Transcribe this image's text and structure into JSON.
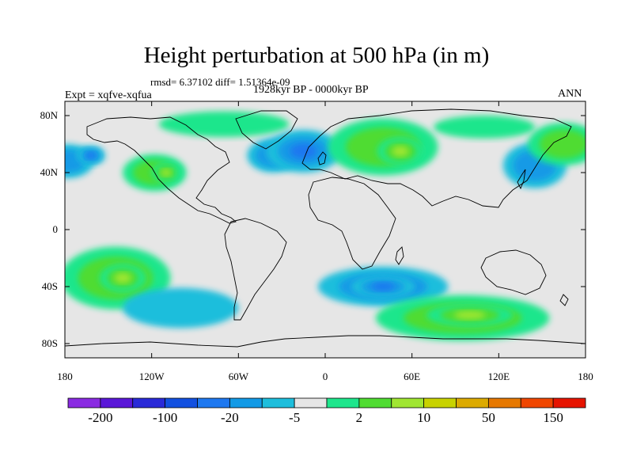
{
  "figure": {
    "title": "Height perturbation at 500 hPa (in m)",
    "stats": "rmsd= 6.37102 diff= 1.51364e-09",
    "experiment": "Expt = xqfve-xqfua",
    "period": "1928kyr BP - 0000kyr BP",
    "season": "ANN"
  },
  "axes": {
    "lat_labels": [
      {
        "text": "80N",
        "value": 80
      },
      {
        "text": "40N",
        "value": 40
      },
      {
        "text": "0",
        "value": 0
      },
      {
        "text": "40S",
        "value": -40
      },
      {
        "text": "80S",
        "value": -80
      }
    ],
    "lon_labels": [
      {
        "text": "180",
        "value": -180
      },
      {
        "text": "120W",
        "value": -120
      },
      {
        "text": "60W",
        "value": -60
      },
      {
        "text": "0",
        "value": 0
      },
      {
        "text": "60E",
        "value": 60
      },
      {
        "text": "120E",
        "value": 120
      },
      {
        "text": "180",
        "value": 180
      }
    ]
  },
  "colorbar": {
    "colors": [
      "#8a2be2",
      "#5a17d8",
      "#2a2ad8",
      "#1250e0",
      "#1e78f0",
      "#129ae6",
      "#1ebedc",
      "#e6e6e6",
      "#1ee68c",
      "#50dc32",
      "#a0e632",
      "#c8d200",
      "#dcaa00",
      "#e67800",
      "#f04600",
      "#e61400"
    ],
    "labels": [
      {
        "text": "-200",
        "index": 1
      },
      {
        "text": "-100",
        "index": 3
      },
      {
        "text": "-20",
        "index": 5
      },
      {
        "text": "-5",
        "index": 7
      },
      {
        "text": "2",
        "index": 9
      },
      {
        "text": "10",
        "index": 11
      },
      {
        "text": "50",
        "index": 13
      },
      {
        "text": "150",
        "index": 15
      }
    ]
  },
  "field": {
    "background": "#e6e6e6",
    "anomalies": [
      {
        "lon": -178,
        "lat": 48,
        "rx": 18,
        "ry": 12,
        "sign": -1,
        "level": 2
      },
      {
        "lon": -162,
        "lat": 52,
        "rx": 10,
        "ry": 7,
        "sign": -1,
        "level": 3
      },
      {
        "lon": -118,
        "lat": 40,
        "rx": 22,
        "ry": 13,
        "sign": 1,
        "level": 2
      },
      {
        "lon": -110,
        "lat": 40,
        "rx": 10,
        "ry": 7,
        "sign": 1,
        "level": 3
      },
      {
        "lon": -70,
        "lat": 74,
        "rx": 45,
        "ry": 9,
        "sign": 1,
        "level": 1
      },
      {
        "lon": -36,
        "lat": 52,
        "rx": 18,
        "ry": 12,
        "sign": -1,
        "level": 2
      },
      {
        "lon": -15,
        "lat": 55,
        "rx": 26,
        "ry": 15,
        "sign": -1,
        "level": 3
      },
      {
        "lon": 40,
        "lat": 58,
        "rx": 38,
        "ry": 20,
        "sign": 1,
        "level": 2
      },
      {
        "lon": 52,
        "lat": 55,
        "rx": 16,
        "ry": 10,
        "sign": 1,
        "level": 3
      },
      {
        "lon": 110,
        "lat": 72,
        "rx": 35,
        "ry": 8,
        "sign": 1,
        "level": 1
      },
      {
        "lon": 145,
        "lat": 45,
        "rx": 22,
        "ry": 16,
        "sign": -1,
        "level": 2
      },
      {
        "lon": 165,
        "lat": 60,
        "rx": 25,
        "ry": 15,
        "sign": 1,
        "level": 2
      },
      {
        "lon": -145,
        "lat": -34,
        "rx": 38,
        "ry": 22,
        "sign": 1,
        "level": 2
      },
      {
        "lon": -140,
        "lat": -34,
        "rx": 16,
        "ry": 10,
        "sign": 1,
        "level": 3
      },
      {
        "lon": -100,
        "lat": -55,
        "rx": 40,
        "ry": 14,
        "sign": -1,
        "level": 1
      },
      {
        "lon": 40,
        "lat": -40,
        "rx": 45,
        "ry": 14,
        "sign": -1,
        "level": 2
      },
      {
        "lon": 40,
        "lat": -40,
        "rx": 22,
        "ry": 8,
        "sign": -1,
        "level": 3
      },
      {
        "lon": 95,
        "lat": -62,
        "rx": 60,
        "ry": 16,
        "sign": 1,
        "level": 2
      },
      {
        "lon": 100,
        "lat": -60,
        "rx": 30,
        "ry": 8,
        "sign": 1,
        "level": 3
      }
    ]
  }
}
